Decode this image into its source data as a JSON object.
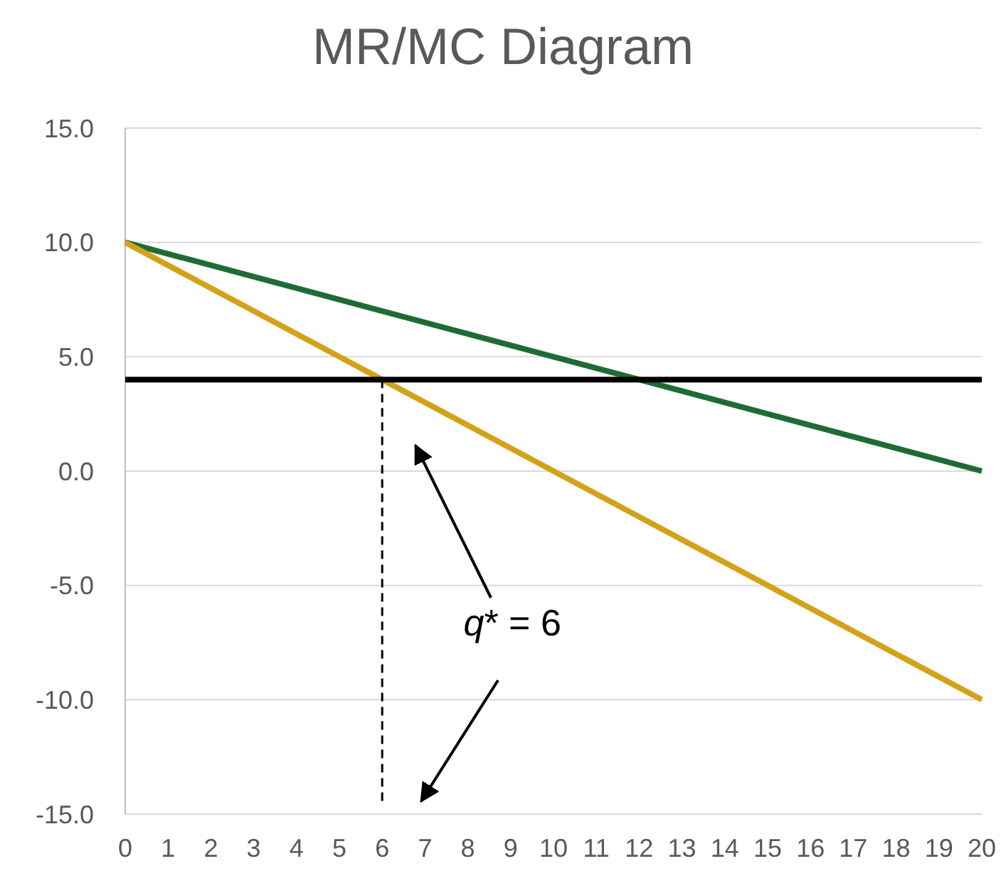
{
  "chart_data": {
    "type": "line",
    "title": "MR/MC Diagram",
    "x": [
      0,
      20
    ],
    "series": [
      {
        "color": "#1f6b35",
        "values": [
          10,
          0
        ]
      },
      {
        "color": "#d4a21a",
        "values": [
          10,
          -10
        ]
      },
      {
        "color": "#000000",
        "values": [
          4,
          4
        ]
      },
      {
        "color": "#000000",
        "x": [
          6,
          6
        ],
        "values": [
          4,
          -14.5
        ],
        "line_style": "dashed"
      }
    ],
    "xlim": [
      0,
      20
    ],
    "xticks": [
      0,
      1,
      2,
      3,
      4,
      5,
      6,
      7,
      8,
      9,
      10,
      11,
      12,
      13,
      14,
      15,
      16,
      17,
      18,
      19,
      20
    ],
    "ylim": [
      -15,
      15
    ],
    "yticks": [
      {
        "value": -15,
        "label": "-15.0"
      },
      {
        "value": -10,
        "label": "-10.0"
      },
      {
        "value": -5,
        "label": "-5.0"
      },
      {
        "value": 0,
        "label": "0.0"
      },
      {
        "value": 5,
        "label": "5.0"
      },
      {
        "value": 10,
        "label": "10.0"
      },
      {
        "value": 15,
        "label": "15.0"
      }
    ],
    "grid": "y",
    "marker": "none",
    "line_style": "solid",
    "annotations": [
      "q* = 6"
    ]
  }
}
